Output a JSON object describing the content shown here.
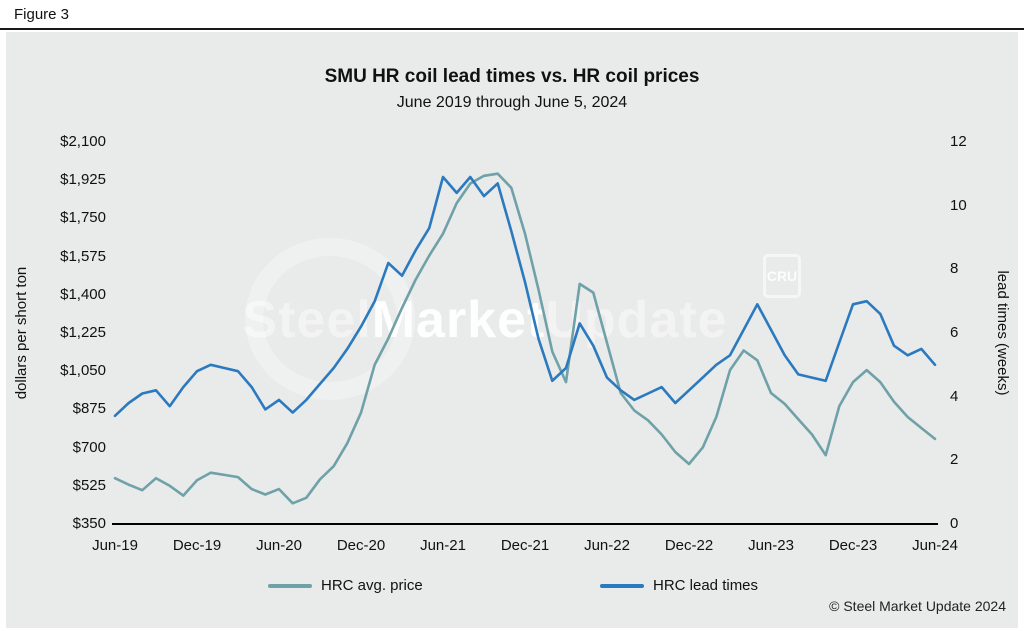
{
  "figure_label": "Figure 3",
  "copyright": "© Steel Market Update 2024",
  "watermark": {
    "part1": "Steel",
    "part2": "Market",
    "part3": "Update",
    "logo": "CRU"
  },
  "colors": {
    "panel_background": "#e9eaea",
    "price_line": "#6fa1a8",
    "lead_time_line": "#2b7abf",
    "axis": "#000000"
  },
  "chart_data": {
    "type": "line",
    "title": "SMU HR coil lead times vs. HR coil prices",
    "subtitle": "June 2019 through June 5, 2024",
    "grid": false,
    "legend_position": "bottom",
    "x": [
      "Jun-19",
      "Jul-19",
      "Aug-19",
      "Sep-19",
      "Oct-19",
      "Nov-19",
      "Dec-19",
      "Jan-20",
      "Feb-20",
      "Mar-20",
      "Apr-20",
      "May-20",
      "Jun-20",
      "Jul-20",
      "Aug-20",
      "Sep-20",
      "Oct-20",
      "Nov-20",
      "Dec-20",
      "Jan-21",
      "Feb-21",
      "Mar-21",
      "Apr-21",
      "May-21",
      "Jun-21",
      "Jul-21",
      "Aug-21",
      "Sep-21",
      "Oct-21",
      "Nov-21",
      "Dec-21",
      "Jan-22",
      "Feb-22",
      "Mar-22",
      "Apr-22",
      "May-22",
      "Jun-22",
      "Jul-22",
      "Aug-22",
      "Sep-22",
      "Oct-22",
      "Nov-22",
      "Dec-22",
      "Jan-23",
      "Feb-23",
      "Mar-23",
      "Apr-23",
      "May-23",
      "Jun-23",
      "Jul-23",
      "Aug-23",
      "Sep-23",
      "Oct-23",
      "Nov-23",
      "Dec-23",
      "Jan-24",
      "Feb-24",
      "Mar-24",
      "Apr-24",
      "May-24",
      "Jun-24"
    ],
    "x_tick_labels": [
      "Jun-19",
      "Dec-19",
      "Jun-20",
      "Dec-20",
      "Jun-21",
      "Dec-21",
      "Jun-22",
      "Dec-22",
      "Jun-23",
      "Dec-23",
      "Jun-24"
    ],
    "left_axis": {
      "label": "dollars per short ton",
      "min": 350,
      "max": 2100,
      "tick_step": 175,
      "tick_labels": [
        "$2,100",
        "$1,925",
        "$1,750",
        "$1,575",
        "$1,400",
        "$1,225",
        "$1,050",
        "$875",
        "$700",
        "$525",
        "$350"
      ]
    },
    "right_axis": {
      "label": "lead times (weeks)",
      "min": 0,
      "max": 12,
      "tick_step": 2,
      "tick_labels": [
        "12",
        "10",
        "8",
        "6",
        "4",
        "2",
        "0"
      ]
    },
    "series": [
      {
        "name": "HRC avg. price",
        "axis": "left",
        "unit": "$/short ton",
        "color": "#6fa1a8",
        "values": [
          560,
          530,
          505,
          560,
          525,
          480,
          550,
          585,
          575,
          565,
          510,
          485,
          510,
          445,
          470,
          555,
          615,
          720,
          860,
          1080,
          1200,
          1340,
          1470,
          1580,
          1680,
          1820,
          1910,
          1945,
          1955,
          1890,
          1680,
          1420,
          1140,
          1000,
          1450,
          1410,
          1180,
          950,
          870,
          825,
          760,
          680,
          625,
          700,
          840,
          1055,
          1145,
          1100,
          950,
          900,
          830,
          760,
          665,
          890,
          1000,
          1055,
          1000,
          910,
          840,
          790,
          740
        ]
      },
      {
        "name": "HRC lead times",
        "axis": "right",
        "unit": "weeks",
        "color": "#2b7abf",
        "values": [
          3.4,
          3.8,
          4.1,
          4.2,
          3.7,
          4.3,
          4.8,
          5.0,
          4.9,
          4.8,
          4.3,
          3.6,
          3.9,
          3.5,
          3.9,
          4.4,
          4.9,
          5.5,
          6.2,
          7.0,
          8.2,
          7.8,
          8.6,
          9.3,
          10.9,
          10.4,
          10.9,
          10.3,
          10.7,
          9.2,
          7.6,
          5.8,
          4.5,
          4.9,
          6.3,
          5.6,
          4.6,
          4.2,
          3.9,
          4.1,
          4.3,
          3.8,
          4.2,
          4.6,
          5.0,
          5.3,
          6.1,
          6.9,
          6.1,
          5.3,
          4.7,
          4.6,
          4.5,
          5.7,
          6.9,
          7.0,
          6.6,
          5.6,
          5.3,
          5.5,
          5.0
        ]
      }
    ],
    "legend": [
      "HRC avg. price",
      "HRC lead times"
    ]
  }
}
